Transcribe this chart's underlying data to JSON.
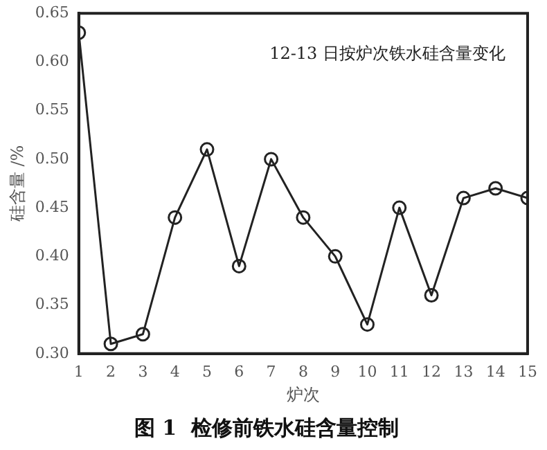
{
  "chart_data": {
    "type": "line",
    "title": "图 1  检修前铁水硅含量控制",
    "xlabel": "炉次",
    "ylabel": "硅含量 /%",
    "annotations": [
      "12-13 日按炉次铁水硅含量变化"
    ],
    "x": [
      1,
      2,
      3,
      4,
      5,
      6,
      7,
      8,
      9,
      10,
      11,
      12,
      13,
      14,
      15
    ],
    "series": [
      {
        "color": "#222222",
        "values": [
          0.63,
          0.31,
          0.32,
          0.44,
          0.51,
          0.39,
          0.5,
          0.44,
          0.4,
          0.33,
          0.45,
          0.36,
          0.46,
          0.47,
          0.46
        ]
      }
    ],
    "xlim": [
      1,
      15
    ],
    "xticks": [
      1,
      2,
      3,
      4,
      5,
      6,
      7,
      8,
      9,
      10,
      11,
      12,
      13,
      14,
      15
    ],
    "ylim": [
      0.3,
      0.65
    ],
    "yticks": [
      {
        "value": 0.3,
        "label": "0.30"
      },
      {
        "value": 0.35,
        "label": "0.35"
      },
      {
        "value": 0.4,
        "label": "0.40"
      },
      {
        "value": 0.45,
        "label": "0.45"
      },
      {
        "value": 0.5,
        "label": "0.50"
      },
      {
        "value": 0.55,
        "label": "0.55"
      },
      {
        "value": 0.6,
        "label": "0.60"
      },
      {
        "value": 0.65,
        "label": "0.65"
      }
    ],
    "grid": false,
    "legend": false,
    "marker": "circle",
    "line_style": "solid"
  }
}
